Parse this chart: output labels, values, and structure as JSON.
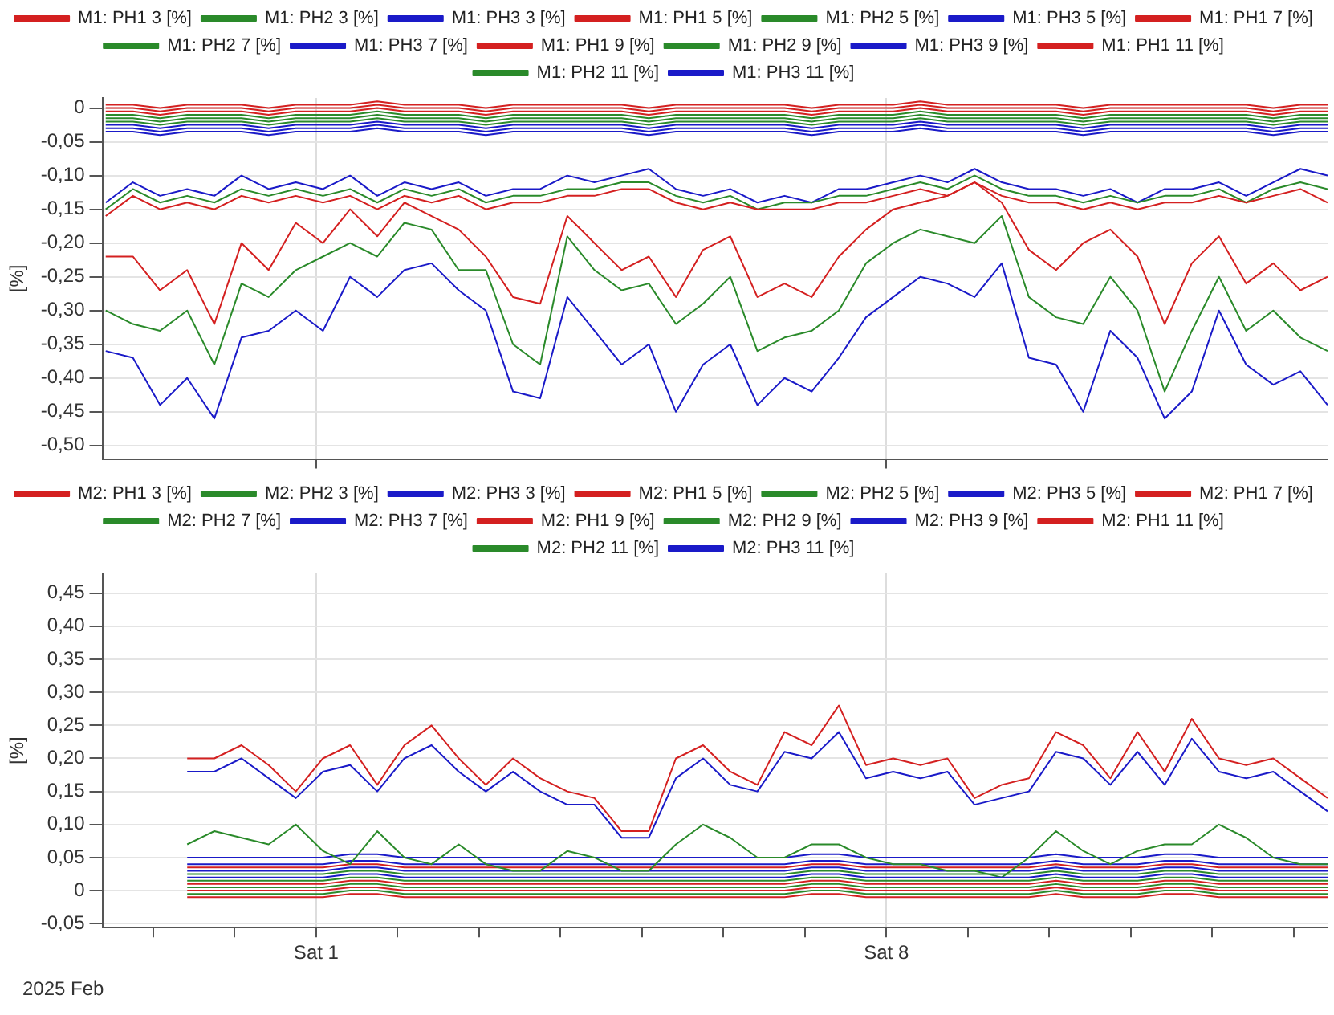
{
  "chart_data": [
    {
      "type": "line",
      "ylabel": "[%]",
      "legend": "top",
      "grid": true,
      "tick_labels": "y",
      "x": [
        "2025-01-29T10:00",
        "2025-01-29T18:00",
        "2025-01-30T02:00",
        "2025-01-30T10:00",
        "2025-01-30T18:00",
        "2025-01-31T02:00",
        "2025-01-31T10:00",
        "2025-01-31T18:00",
        "2025-02-01T02:00",
        "2025-02-01T10:00",
        "2025-02-01T18:00",
        "2025-02-02T02:00",
        "2025-02-02T10:00",
        "2025-02-02T18:00",
        "2025-02-03T02:00",
        "2025-02-03T10:00",
        "2025-02-03T18:00",
        "2025-02-04T02:00",
        "2025-02-04T10:00",
        "2025-02-04T18:00",
        "2025-02-05T02:00",
        "2025-02-05T10:00",
        "2025-02-05T18:00",
        "2025-02-06T02:00",
        "2025-02-06T10:00",
        "2025-02-06T18:00",
        "2025-02-07T02:00",
        "2025-02-07T10:00",
        "2025-02-07T18:00",
        "2025-02-08T02:00",
        "2025-02-08T10:00",
        "2025-02-08T18:00",
        "2025-02-09T02:00",
        "2025-02-09T10:00",
        "2025-02-09T18:00",
        "2025-02-10T02:00",
        "2025-02-10T10:00",
        "2025-02-10T18:00",
        "2025-02-11T02:00",
        "2025-02-11T10:00",
        "2025-02-11T18:00",
        "2025-02-12T02:00",
        "2025-02-12T10:00",
        "2025-02-12T18:00",
        "2025-02-13T02:00",
        "2025-02-13T10:00"
      ],
      "xlim": [
        "2025-01-29T09:00",
        "2025-02-13T10:00"
      ],
      "xticks": [
        {
          "value": "2025-02-01",
          "label": null
        },
        {
          "value": "2025-02-08",
          "label": null
        }
      ],
      "ylim": [
        -0.52,
        0.015
      ],
      "yticks": [
        0,
        {
          "value": -0.05,
          "label": "-0,05"
        },
        {
          "value": -0.1,
          "label": "-0,10"
        },
        {
          "value": -0.15,
          "label": "-0,15"
        },
        {
          "value": -0.2,
          "label": "-0,20"
        },
        {
          "value": -0.25,
          "label": "-0,25"
        },
        {
          "value": -0.3,
          "label": "-0,30"
        },
        {
          "value": -0.35,
          "label": "-0,35"
        },
        {
          "value": -0.4,
          "label": "-0,40"
        },
        {
          "value": -0.45,
          "label": "-0,45"
        },
        {
          "value": -0.5,
          "label": "-0,50"
        }
      ],
      "series": [
        {
          "name": "M1: PH1 3 [%]",
          "color": "#d42020",
          "values": [
            0.005,
            0.005,
            0,
            0.005,
            0.005,
            0.005,
            0,
            0.005,
            0.005,
            0.005,
            0.01,
            0.005,
            0.005,
            0.005,
            0,
            0.005,
            0.005,
            0.005,
            0.005,
            0.005,
            0,
            0.005,
            0.005,
            0.005,
            0.005,
            0.005,
            0,
            0.005,
            0.005,
            0.005,
            0.01,
            0.005,
            0.005,
            0.005,
            0.005,
            0.005,
            0,
            0.005,
            0.005,
            0.005,
            0.005,
            0.005,
            0.005,
            0,
            0.005,
            0.005
          ]
        },
        {
          "name": "M1: PH2 3 [%]",
          "color": "#2a8a2a",
          "values": [
            -0.01,
            -0.01,
            -0.015,
            -0.01,
            -0.01,
            -0.01,
            -0.015,
            -0.01,
            -0.01,
            -0.01,
            -0.005,
            -0.01,
            -0.01,
            -0.01,
            -0.015,
            -0.01,
            -0.01,
            -0.01,
            -0.01,
            -0.01,
            -0.015,
            -0.01,
            -0.01,
            -0.01,
            -0.01,
            -0.01,
            -0.015,
            -0.01,
            -0.01,
            -0.01,
            -0.005,
            -0.01,
            -0.01,
            -0.01,
            -0.01,
            -0.01,
            -0.015,
            -0.01,
            -0.01,
            -0.01,
            -0.01,
            -0.01,
            -0.01,
            -0.015,
            -0.01,
            -0.01
          ]
        },
        {
          "name": "M1: PH3 3 [%]",
          "color": "#1a1ac8",
          "values": [
            -0.025,
            -0.025,
            -0.03,
            -0.025,
            -0.025,
            -0.025,
            -0.03,
            -0.025,
            -0.025,
            -0.025,
            -0.02,
            -0.025,
            -0.025,
            -0.025,
            -0.03,
            -0.025,
            -0.025,
            -0.025,
            -0.025,
            -0.025,
            -0.03,
            -0.025,
            -0.025,
            -0.025,
            -0.025,
            -0.025,
            -0.03,
            -0.025,
            -0.025,
            -0.025,
            -0.02,
            -0.025,
            -0.025,
            -0.025,
            -0.025,
            -0.025,
            -0.03,
            -0.025,
            -0.025,
            -0.025,
            -0.025,
            -0.025,
            -0.025,
            -0.03,
            -0.025,
            -0.025
          ]
        },
        {
          "name": "M1: PH1 5 [%]",
          "color": "#d42020",
          "values": [
            -0.22,
            -0.22,
            -0.27,
            -0.24,
            -0.32,
            -0.2,
            -0.24,
            -0.17,
            -0.2,
            -0.15,
            -0.19,
            -0.14,
            -0.16,
            -0.18,
            -0.22,
            -0.28,
            -0.29,
            -0.16,
            -0.2,
            -0.24,
            -0.22,
            -0.28,
            -0.21,
            -0.19,
            -0.28,
            -0.26,
            -0.28,
            -0.22,
            -0.18,
            -0.15,
            -0.14,
            -0.13,
            -0.11,
            -0.14,
            -0.21,
            -0.24,
            -0.2,
            -0.18,
            -0.22,
            -0.32,
            -0.23,
            -0.19,
            -0.26,
            -0.23,
            -0.27,
            -0.25
          ]
        },
        {
          "name": "M1: PH2 5 [%]",
          "color": "#2a8a2a",
          "values": [
            -0.3,
            -0.32,
            -0.33,
            -0.3,
            -0.38,
            -0.26,
            -0.28,
            -0.24,
            -0.22,
            -0.2,
            -0.22,
            -0.17,
            -0.18,
            -0.24,
            -0.24,
            -0.35,
            -0.38,
            -0.19,
            -0.24,
            -0.27,
            -0.26,
            -0.32,
            -0.29,
            -0.25,
            -0.36,
            -0.34,
            -0.33,
            -0.3,
            -0.23,
            -0.2,
            -0.18,
            -0.19,
            -0.2,
            -0.16,
            -0.28,
            -0.31,
            -0.32,
            -0.25,
            -0.3,
            -0.42,
            -0.33,
            -0.25,
            -0.33,
            -0.3,
            -0.34,
            -0.36
          ]
        },
        {
          "name": "M1: PH3 5 [%]",
          "color": "#1a1ac8",
          "values": [
            -0.36,
            -0.37,
            -0.44,
            -0.4,
            -0.46,
            -0.34,
            -0.33,
            -0.3,
            -0.33,
            -0.25,
            -0.28,
            -0.24,
            -0.23,
            -0.27,
            -0.3,
            -0.42,
            -0.43,
            -0.28,
            -0.33,
            -0.38,
            -0.35,
            -0.45,
            -0.38,
            -0.35,
            -0.44,
            -0.4,
            -0.42,
            -0.37,
            -0.31,
            -0.28,
            -0.25,
            -0.26,
            -0.28,
            -0.23,
            -0.37,
            -0.38,
            -0.45,
            -0.33,
            -0.37,
            -0.46,
            -0.42,
            -0.3,
            -0.38,
            -0.41,
            -0.39,
            -0.44
          ]
        },
        {
          "name": "M1: PH1 7 [%]",
          "color": "#d42020",
          "values": [
            -0.16,
            -0.13,
            -0.15,
            -0.14,
            -0.15,
            -0.13,
            -0.14,
            -0.13,
            -0.14,
            -0.13,
            -0.15,
            -0.13,
            -0.14,
            -0.13,
            -0.15,
            -0.14,
            -0.14,
            -0.13,
            -0.13,
            -0.12,
            -0.12,
            -0.14,
            -0.15,
            -0.14,
            -0.15,
            -0.15,
            -0.15,
            -0.14,
            -0.14,
            -0.13,
            -0.12,
            -0.13,
            -0.11,
            -0.13,
            -0.14,
            -0.14,
            -0.15,
            -0.14,
            -0.15,
            -0.14,
            -0.14,
            -0.13,
            -0.14,
            -0.13,
            -0.12,
            -0.14
          ]
        },
        {
          "name": "M1: PH2 7 [%]",
          "color": "#2a8a2a",
          "values": [
            -0.15,
            -0.12,
            -0.14,
            -0.13,
            -0.14,
            -0.12,
            -0.13,
            -0.12,
            -0.13,
            -0.12,
            -0.14,
            -0.12,
            -0.13,
            -0.12,
            -0.14,
            -0.13,
            -0.13,
            -0.12,
            -0.12,
            -0.11,
            -0.11,
            -0.13,
            -0.14,
            -0.13,
            -0.15,
            -0.14,
            -0.14,
            -0.13,
            -0.13,
            -0.12,
            -0.11,
            -0.12,
            -0.1,
            -0.12,
            -0.13,
            -0.13,
            -0.14,
            -0.13,
            -0.14,
            -0.13,
            -0.13,
            -0.12,
            -0.14,
            -0.12,
            -0.11,
            -0.12
          ]
        },
        {
          "name": "M1: PH3 7 [%]",
          "color": "#1a1ac8",
          "values": [
            -0.14,
            -0.11,
            -0.13,
            -0.12,
            -0.13,
            -0.1,
            -0.12,
            -0.11,
            -0.12,
            -0.1,
            -0.13,
            -0.11,
            -0.12,
            -0.11,
            -0.13,
            -0.12,
            -0.12,
            -0.1,
            -0.11,
            -0.1,
            -0.09,
            -0.12,
            -0.13,
            -0.12,
            -0.14,
            -0.13,
            -0.14,
            -0.12,
            -0.12,
            -0.11,
            -0.1,
            -0.11,
            -0.09,
            -0.11,
            -0.12,
            -0.12,
            -0.13,
            -0.12,
            -0.14,
            -0.12,
            -0.12,
            -0.11,
            -0.13,
            -0.11,
            -0.09,
            -0.1
          ]
        },
        {
          "name": "M1: PH1 9 [%]",
          "color": "#d42020",
          "values": [
            0,
            0,
            -0.005,
            0,
            0,
            0,
            -0.005,
            0,
            0,
            0,
            0.005,
            0,
            0,
            0,
            -0.005,
            0,
            0,
            0,
            0,
            0,
            -0.005,
            0,
            0,
            0,
            0,
            0,
            -0.005,
            0,
            0,
            0,
            0.005,
            0,
            0,
            0,
            0,
            0,
            -0.005,
            0,
            0,
            0,
            0,
            0,
            0,
            -0.005,
            0,
            0
          ]
        },
        {
          "name": "M1: PH2 9 [%]",
          "color": "#2a8a2a",
          "values": [
            -0.015,
            -0.015,
            -0.02,
            -0.015,
            -0.015,
            -0.015,
            -0.02,
            -0.015,
            -0.015,
            -0.015,
            -0.01,
            -0.015,
            -0.015,
            -0.015,
            -0.02,
            -0.015,
            -0.015,
            -0.015,
            -0.015,
            -0.015,
            -0.02,
            -0.015,
            -0.015,
            -0.015,
            -0.015,
            -0.015,
            -0.02,
            -0.015,
            -0.015,
            -0.015,
            -0.01,
            -0.015,
            -0.015,
            -0.015,
            -0.015,
            -0.015,
            -0.02,
            -0.015,
            -0.015,
            -0.015,
            -0.015,
            -0.015,
            -0.015,
            -0.02,
            -0.015,
            -0.015
          ]
        },
        {
          "name": "M1: PH3 9 [%]",
          "color": "#1a1ac8",
          "values": [
            -0.03,
            -0.03,
            -0.035,
            -0.03,
            -0.03,
            -0.03,
            -0.035,
            -0.03,
            -0.03,
            -0.03,
            -0.025,
            -0.03,
            -0.03,
            -0.03,
            -0.035,
            -0.03,
            -0.03,
            -0.03,
            -0.03,
            -0.03,
            -0.035,
            -0.03,
            -0.03,
            -0.03,
            -0.03,
            -0.03,
            -0.035,
            -0.03,
            -0.03,
            -0.03,
            -0.025,
            -0.03,
            -0.03,
            -0.03,
            -0.03,
            -0.03,
            -0.035,
            -0.03,
            -0.03,
            -0.03,
            -0.03,
            -0.03,
            -0.03,
            -0.035,
            -0.03,
            -0.03
          ]
        },
        {
          "name": "M1: PH1 11 [%]",
          "color": "#d42020",
          "values": [
            -0.005,
            -0.005,
            -0.01,
            -0.005,
            -0.005,
            -0.005,
            -0.01,
            -0.005,
            -0.005,
            -0.005,
            0,
            -0.005,
            -0.005,
            -0.005,
            -0.01,
            -0.005,
            -0.005,
            -0.005,
            -0.005,
            -0.005,
            -0.01,
            -0.005,
            -0.005,
            -0.005,
            -0.005,
            -0.005,
            -0.01,
            -0.005,
            -0.005,
            -0.005,
            0,
            -0.005,
            -0.005,
            -0.005,
            -0.005,
            -0.005,
            -0.01,
            -0.005,
            -0.005,
            -0.005,
            -0.005,
            -0.005,
            -0.005,
            -0.01,
            -0.005,
            -0.005
          ]
        },
        {
          "name": "M1: PH2 11 [%]",
          "color": "#2a8a2a",
          "values": [
            -0.02,
            -0.02,
            -0.025,
            -0.02,
            -0.02,
            -0.02,
            -0.025,
            -0.02,
            -0.02,
            -0.02,
            -0.015,
            -0.02,
            -0.02,
            -0.02,
            -0.025,
            -0.02,
            -0.02,
            -0.02,
            -0.02,
            -0.02,
            -0.025,
            -0.02,
            -0.02,
            -0.02,
            -0.02,
            -0.02,
            -0.025,
            -0.02,
            -0.02,
            -0.02,
            -0.015,
            -0.02,
            -0.02,
            -0.02,
            -0.02,
            -0.02,
            -0.025,
            -0.02,
            -0.02,
            -0.02,
            -0.02,
            -0.02,
            -0.02,
            -0.025,
            -0.02,
            -0.02
          ]
        },
        {
          "name": "M1: PH3 11 [%]",
          "color": "#1a1ac8",
          "values": [
            -0.035,
            -0.035,
            -0.04,
            -0.035,
            -0.035,
            -0.035,
            -0.04,
            -0.035,
            -0.035,
            -0.035,
            -0.03,
            -0.035,
            -0.035,
            -0.035,
            -0.04,
            -0.035,
            -0.035,
            -0.035,
            -0.035,
            -0.035,
            -0.04,
            -0.035,
            -0.035,
            -0.035,
            -0.035,
            -0.035,
            -0.04,
            -0.035,
            -0.035,
            -0.035,
            -0.03,
            -0.035,
            -0.035,
            -0.035,
            -0.035,
            -0.035,
            -0.04,
            -0.035,
            -0.035,
            -0.035,
            -0.035,
            -0.035,
            -0.035,
            -0.04,
            -0.035,
            -0.035
          ]
        }
      ]
    },
    {
      "type": "line",
      "ylabel": "[%]",
      "legend": "top",
      "grid": true,
      "annotations": [
        "2025 Feb"
      ],
      "x": [
        "2025-01-30T10:00",
        "2025-01-30T18:00",
        "2025-01-31T02:00",
        "2025-01-31T10:00",
        "2025-01-31T18:00",
        "2025-02-01T02:00",
        "2025-02-01T10:00",
        "2025-02-01T18:00",
        "2025-02-02T02:00",
        "2025-02-02T10:00",
        "2025-02-02T18:00",
        "2025-02-03T02:00",
        "2025-02-03T10:00",
        "2025-02-03T18:00",
        "2025-02-04T02:00",
        "2025-02-04T10:00",
        "2025-02-04T18:00",
        "2025-02-05T02:00",
        "2025-02-05T10:00",
        "2025-02-05T18:00",
        "2025-02-06T02:00",
        "2025-02-06T10:00",
        "2025-02-06T18:00",
        "2025-02-07T02:00",
        "2025-02-07T10:00",
        "2025-02-07T18:00",
        "2025-02-08T02:00",
        "2025-02-08T10:00",
        "2025-02-08T18:00",
        "2025-02-09T02:00",
        "2025-02-09T10:00",
        "2025-02-09T18:00",
        "2025-02-10T02:00",
        "2025-02-10T10:00",
        "2025-02-10T18:00",
        "2025-02-11T02:00",
        "2025-02-11T10:00",
        "2025-02-11T18:00",
        "2025-02-12T02:00",
        "2025-02-12T10:00",
        "2025-02-12T18:00",
        "2025-02-13T02:00",
        "2025-02-13T10:00"
      ],
      "xlim": [
        "2025-01-29T09:00",
        "2025-02-13T10:00"
      ],
      "xticks": [
        {
          "value": "2025-01-30",
          "label": null
        },
        {
          "value": "2025-01-31",
          "label": null
        },
        {
          "value": "2025-02-01",
          "label": "Sat 1"
        },
        {
          "value": "2025-02-02",
          "label": null
        },
        {
          "value": "2025-02-03",
          "label": null
        },
        {
          "value": "2025-02-04",
          "label": null
        },
        {
          "value": "2025-02-05",
          "label": null
        },
        {
          "value": "2025-02-06",
          "label": null
        },
        {
          "value": "2025-02-07",
          "label": null
        },
        {
          "value": "2025-02-08",
          "label": "Sat 8"
        },
        {
          "value": "2025-02-09",
          "label": null
        },
        {
          "value": "2025-02-10",
          "label": null
        },
        {
          "value": "2025-02-11",
          "label": null
        },
        {
          "value": "2025-02-12",
          "label": null
        },
        {
          "value": "2025-02-13",
          "label": null
        }
      ],
      "ylim": [
        -0.056,
        0.48
      ],
      "yticks": [
        {
          "value": -0.05,
          "label": "-0,05"
        },
        0,
        {
          "value": 0.05,
          "label": "0,05"
        },
        {
          "value": 0.1,
          "label": "0,10"
        },
        {
          "value": 0.15,
          "label": "0,15"
        },
        {
          "value": 0.2,
          "label": "0,20"
        },
        {
          "value": 0.25,
          "label": "0,25"
        },
        {
          "value": 0.3,
          "label": "0,30"
        },
        {
          "value": 0.35,
          "label": "0,35"
        },
        {
          "value": 0.4,
          "label": "0,40"
        },
        {
          "value": 0.45,
          "label": "0,45"
        }
      ],
      "series": [
        {
          "name": "M2: PH1 3 [%]",
          "color": "#d42020",
          "values": [
            0.01,
            0.01,
            0.01,
            0.01,
            0.01,
            0.01,
            0.015,
            0.015,
            0.01,
            0.01,
            0.01,
            0.01,
            0.01,
            0.01,
            0.01,
            0.01,
            0.01,
            0.01,
            0.01,
            0.01,
            0.01,
            0.01,
            0.01,
            0.015,
            0.015,
            0.01,
            0.01,
            0.01,
            0.01,
            0.01,
            0.01,
            0.01,
            0.015,
            0.01,
            0.01,
            0.01,
            0.015,
            0.015,
            0.01,
            0.01,
            0.01,
            0.01,
            0.01
          ]
        },
        {
          "name": "M2: PH2 3 [%]",
          "color": "#2a8a2a",
          "values": [
            0.015,
            0.015,
            0.015,
            0.015,
            0.015,
            0.015,
            0.02,
            0.02,
            0.015,
            0.015,
            0.015,
            0.015,
            0.015,
            0.015,
            0.015,
            0.015,
            0.015,
            0.015,
            0.015,
            0.015,
            0.015,
            0.015,
            0.015,
            0.02,
            0.02,
            0.015,
            0.015,
            0.015,
            0.015,
            0.015,
            0.015,
            0.015,
            0.02,
            0.015,
            0.015,
            0.015,
            0.02,
            0.02,
            0.015,
            0.015,
            0.015,
            0.015,
            0.015
          ]
        },
        {
          "name": "M2: PH3 3 [%]",
          "color": "#1a1ac8",
          "values": [
            0.02,
            0.02,
            0.02,
            0.02,
            0.02,
            0.02,
            0.025,
            0.025,
            0.02,
            0.02,
            0.02,
            0.02,
            0.02,
            0.02,
            0.02,
            0.02,
            0.02,
            0.02,
            0.02,
            0.02,
            0.02,
            0.02,
            0.02,
            0.025,
            0.025,
            0.02,
            0.02,
            0.02,
            0.02,
            0.02,
            0.02,
            0.02,
            0.025,
            0.02,
            0.02,
            0.02,
            0.025,
            0.025,
            0.02,
            0.02,
            0.02,
            0.02,
            0.02
          ]
        },
        {
          "name": "M2: PH1 5 [%]",
          "color": "#d42020",
          "values": [
            0.2,
            0.2,
            0.22,
            0.19,
            0.15,
            0.2,
            0.22,
            0.16,
            0.22,
            0.25,
            0.2,
            0.16,
            0.2,
            0.17,
            0.15,
            0.14,
            0.09,
            0.09,
            0.2,
            0.22,
            0.18,
            0.16,
            0.24,
            0.22,
            0.28,
            0.19,
            0.2,
            0.19,
            0.2,
            0.14,
            0.16,
            0.17,
            0.24,
            0.22,
            0.17,
            0.24,
            0.18,
            0.26,
            0.2,
            0.19,
            0.2,
            0.17,
            0.14
          ]
        },
        {
          "name": "M2: PH2 5 [%]",
          "color": "#2a8a2a",
          "values": [
            0.07,
            0.09,
            0.08,
            0.07,
            0.1,
            0.06,
            0.04,
            0.09,
            0.05,
            0.04,
            0.07,
            0.04,
            0.03,
            0.03,
            0.06,
            0.05,
            0.03,
            0.03,
            0.07,
            0.1,
            0.08,
            0.05,
            0.05,
            0.07,
            0.07,
            0.05,
            0.04,
            0.04,
            0.03,
            0.03,
            0.02,
            0.05,
            0.09,
            0.06,
            0.04,
            0.06,
            0.07,
            0.07,
            0.1,
            0.08,
            0.05,
            0.04,
            0.04
          ]
        },
        {
          "name": "M2: PH3 5 [%]",
          "color": "#1a1ac8",
          "values": [
            0.18,
            0.18,
            0.2,
            0.17,
            0.14,
            0.18,
            0.19,
            0.15,
            0.2,
            0.22,
            0.18,
            0.15,
            0.18,
            0.15,
            0.13,
            0.13,
            0.08,
            0.08,
            0.17,
            0.2,
            0.16,
            0.15,
            0.21,
            0.2,
            0.24,
            0.17,
            0.18,
            0.17,
            0.18,
            0.13,
            0.14,
            0.15,
            0.21,
            0.2,
            0.16,
            0.21,
            0.16,
            0.23,
            0.18,
            0.17,
            0.18,
            0.15,
            0.12
          ]
        },
        {
          "name": "M2: PH1 7 [%]",
          "color": "#d42020",
          "values": [
            0.035,
            0.035,
            0.035,
            0.035,
            0.035,
            0.035,
            0.04,
            0.04,
            0.035,
            0.035,
            0.035,
            0.035,
            0.035,
            0.035,
            0.035,
            0.035,
            0.035,
            0.035,
            0.035,
            0.035,
            0.035,
            0.035,
            0.035,
            0.04,
            0.04,
            0.035,
            0.035,
            0.035,
            0.035,
            0.035,
            0.035,
            0.035,
            0.04,
            0.035,
            0.035,
            0.035,
            0.04,
            0.04,
            0.035,
            0.035,
            0.035,
            0.035,
            0.035
          ]
        },
        {
          "name": "M2: PH2 7 [%]",
          "color": "#2a8a2a",
          "values": [
            0.025,
            0.025,
            0.025,
            0.025,
            0.025,
            0.025,
            0.03,
            0.03,
            0.025,
            0.025,
            0.025,
            0.025,
            0.025,
            0.025,
            0.025,
            0.025,
            0.025,
            0.025,
            0.025,
            0.025,
            0.025,
            0.025,
            0.025,
            0.03,
            0.03,
            0.025,
            0.025,
            0.025,
            0.025,
            0.025,
            0.025,
            0.025,
            0.03,
            0.025,
            0.025,
            0.025,
            0.03,
            0.03,
            0.025,
            0.025,
            0.025,
            0.025,
            0.025
          ]
        },
        {
          "name": "M2: PH3 7 [%]",
          "color": "#1a1ac8",
          "values": [
            0.05,
            0.05,
            0.05,
            0.05,
            0.05,
            0.05,
            0.055,
            0.055,
            0.05,
            0.05,
            0.05,
            0.05,
            0.05,
            0.05,
            0.05,
            0.05,
            0.05,
            0.05,
            0.05,
            0.05,
            0.05,
            0.05,
            0.05,
            0.055,
            0.055,
            0.05,
            0.05,
            0.05,
            0.05,
            0.05,
            0.05,
            0.05,
            0.055,
            0.05,
            0.05,
            0.05,
            0.055,
            0.055,
            0.05,
            0.05,
            0.05,
            0.05,
            0.05
          ]
        },
        {
          "name": "M2: PH1 9 [%]",
          "color": "#d42020",
          "values": [
            0,
            0,
            0,
            0,
            0,
            0,
            0.005,
            0.005,
            0,
            0,
            0,
            0,
            0,
            0,
            0,
            0,
            0,
            0,
            0,
            0,
            0,
            0,
            0,
            0.005,
            0.005,
            0,
            0,
            0,
            0,
            0,
            0,
            0,
            0.005,
            0,
            0,
            0,
            0.005,
            0.005,
            0,
            0,
            0,
            0,
            0
          ]
        },
        {
          "name": "M2: PH2 9 [%]",
          "color": "#2a8a2a",
          "values": [
            0.005,
            0.005,
            0.005,
            0.005,
            0.005,
            0.005,
            0.01,
            0.01,
            0.005,
            0.005,
            0.005,
            0.005,
            0.005,
            0.005,
            0.005,
            0.005,
            0.005,
            0.005,
            0.005,
            0.005,
            0.005,
            0.005,
            0.005,
            0.01,
            0.01,
            0.005,
            0.005,
            0.005,
            0.005,
            0.005,
            0.005,
            0.005,
            0.01,
            0.005,
            0.005,
            0.005,
            0.01,
            0.01,
            0.005,
            0.005,
            0.005,
            0.005,
            0.005
          ]
        },
        {
          "name": "M2: PH3 9 [%]",
          "color": "#1a1ac8",
          "values": [
            0.03,
            0.03,
            0.03,
            0.03,
            0.03,
            0.03,
            0.035,
            0.035,
            0.03,
            0.03,
            0.03,
            0.03,
            0.03,
            0.03,
            0.03,
            0.03,
            0.03,
            0.03,
            0.03,
            0.03,
            0.03,
            0.03,
            0.03,
            0.035,
            0.035,
            0.03,
            0.03,
            0.03,
            0.03,
            0.03,
            0.03,
            0.03,
            0.035,
            0.03,
            0.03,
            0.03,
            0.035,
            0.035,
            0.03,
            0.03,
            0.03,
            0.03,
            0.03
          ]
        },
        {
          "name": "M2: PH1 11 [%]",
          "color": "#d42020",
          "values": [
            -0.01,
            -0.01,
            -0.01,
            -0.01,
            -0.01,
            -0.01,
            -0.005,
            -0.005,
            -0.01,
            -0.01,
            -0.01,
            -0.01,
            -0.01,
            -0.01,
            -0.01,
            -0.01,
            -0.01,
            -0.01,
            -0.01,
            -0.01,
            -0.01,
            -0.01,
            -0.01,
            -0.005,
            -0.005,
            -0.01,
            -0.01,
            -0.01,
            -0.01,
            -0.01,
            -0.01,
            -0.01,
            -0.005,
            -0.01,
            -0.01,
            -0.01,
            -0.005,
            -0.005,
            -0.01,
            -0.01,
            -0.01,
            -0.01,
            -0.01
          ]
        },
        {
          "name": "M2: PH2 11 [%]",
          "color": "#2a8a2a",
          "values": [
            -0.005,
            -0.005,
            -0.005,
            -0.005,
            -0.005,
            -0.005,
            0,
            0,
            -0.005,
            -0.005,
            -0.005,
            -0.005,
            -0.005,
            -0.005,
            -0.005,
            -0.005,
            -0.005,
            -0.005,
            -0.005,
            -0.005,
            -0.005,
            -0.005,
            -0.005,
            0,
            0,
            -0.005,
            -0.005,
            -0.005,
            -0.005,
            -0.005,
            -0.005,
            -0.005,
            0,
            -0.005,
            -0.005,
            -0.005,
            0,
            0,
            -0.005,
            -0.005,
            -0.005,
            -0.005,
            -0.005
          ]
        },
        {
          "name": "M2: PH3 11 [%]",
          "color": "#1a1ac8",
          "values": [
            0.04,
            0.04,
            0.04,
            0.04,
            0.04,
            0.04,
            0.045,
            0.045,
            0.04,
            0.04,
            0.04,
            0.04,
            0.04,
            0.04,
            0.04,
            0.04,
            0.04,
            0.04,
            0.04,
            0.04,
            0.04,
            0.04,
            0.04,
            0.045,
            0.045,
            0.04,
            0.04,
            0.04,
            0.04,
            0.04,
            0.04,
            0.04,
            0.045,
            0.04,
            0.04,
            0.04,
            0.045,
            0.045,
            0.04,
            0.04,
            0.04,
            0.04,
            0.04
          ]
        }
      ]
    }
  ]
}
